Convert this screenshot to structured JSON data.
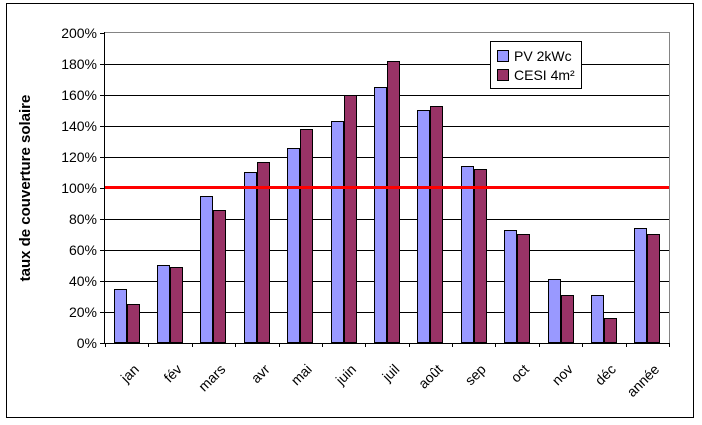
{
  "chart_data": {
    "type": "bar",
    "title": "",
    "ylabel": "taux de couverture solaire",
    "xlabel": "",
    "categories": [
      "jan",
      "fév",
      "mars",
      "avr",
      "mai",
      "juin",
      "juil",
      "août",
      "sep",
      "oct",
      "nov",
      "déc",
      "année"
    ],
    "series": [
      {
        "name": "PV 2kWc",
        "color": "#9999FF",
        "values": [
          35,
          50,
          95,
          110,
          126,
          143,
          165,
          150,
          114,
          73,
          41,
          31,
          74
        ]
      },
      {
        "name": "CESI 4m²",
        "color": "#993366",
        "values": [
          25,
          49,
          86,
          117,
          138,
          160,
          182,
          153,
          112,
          70,
          31,
          16,
          70
        ]
      }
    ],
    "ylim": [
      0,
      200
    ],
    "ytick_step": 20,
    "ytick_labels": [
      "0%",
      "20%",
      "40%",
      "60%",
      "80%",
      "100%",
      "120%",
      "140%",
      "160%",
      "180%",
      "200%"
    ],
    "reference_line": {
      "value": 100,
      "color": "#FF0000"
    },
    "grid": true,
    "legend_position": "inside-top-right",
    "units": "percent"
  }
}
